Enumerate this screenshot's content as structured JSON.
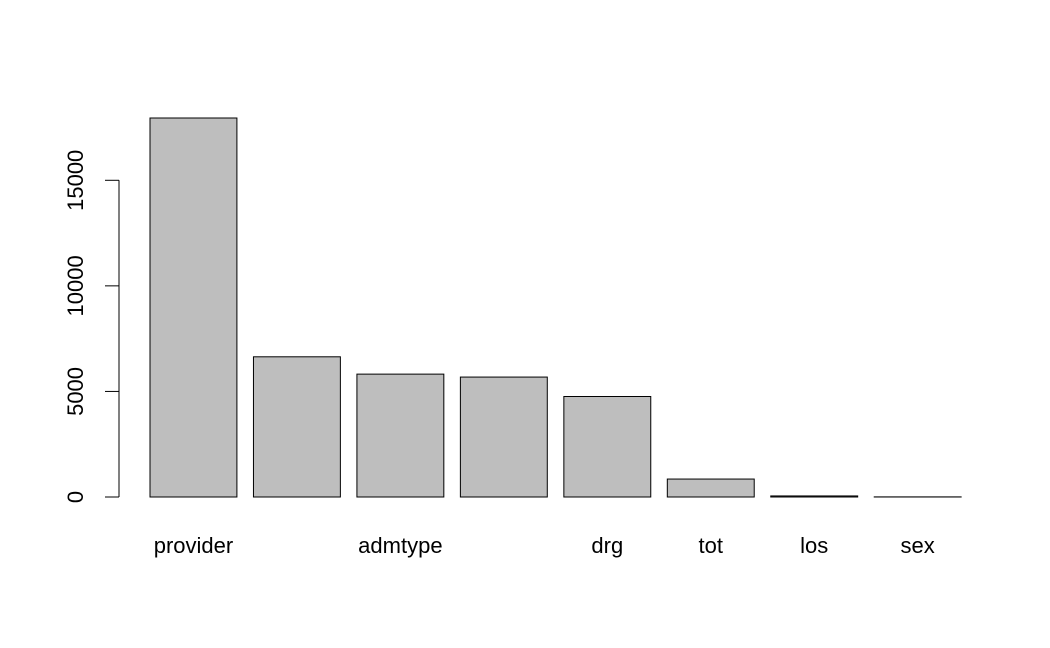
{
  "chart_data": {
    "type": "bar",
    "categories": [
      "provider",
      "",
      "admtype",
      "",
      "drg",
      "tot",
      "los",
      "sex"
    ],
    "values": [
      17950,
      6640,
      5820,
      5680,
      4760,
      850,
      50,
      5
    ],
    "ylim": [
      0,
      17950
    ],
    "yticks": [
      0,
      5000,
      10000,
      15000
    ],
    "ytick_labels": [
      "0",
      "5000",
      "10000",
      "15000"
    ],
    "bar_color": "#bebebe",
    "border_color": "#000000",
    "grid": false,
    "legend": "none",
    "title": "",
    "xlabel": "",
    "ylabel": ""
  }
}
